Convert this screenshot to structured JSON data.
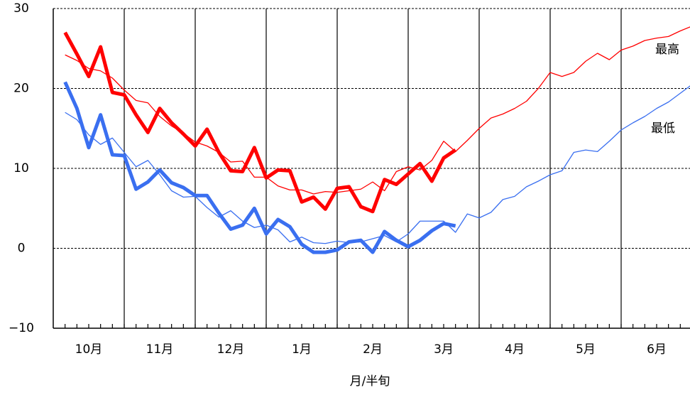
{
  "chart_data": {
    "type": "line",
    "x_label": "月/半旬",
    "x": [
      1,
      2,
      3,
      4,
      5,
      6,
      7,
      8,
      9,
      10,
      11,
      12,
      13,
      14,
      15,
      16,
      17,
      18,
      19,
      20,
      21,
      22,
      23,
      24,
      25,
      26,
      27,
      28,
      29,
      30,
      31,
      32,
      33,
      34,
      35,
      36,
      37,
      38,
      39,
      40,
      41,
      42,
      43,
      44,
      45,
      46,
      47,
      48,
      49,
      50,
      51,
      52,
      53,
      54
    ],
    "xlim": [
      0,
      54
    ],
    "xticks": [
      {
        "value": 3,
        "label": "10月"
      },
      {
        "value": 9,
        "label": "11月"
      },
      {
        "value": 15,
        "label": "12月"
      },
      {
        "value": 21,
        "label": "1月"
      },
      {
        "value": 27,
        "label": "2月"
      },
      {
        "value": 33,
        "label": "3月"
      },
      {
        "value": 39,
        "label": "4月"
      },
      {
        "value": 45,
        "label": "5月"
      },
      {
        "value": 51,
        "label": "6月"
      }
    ],
    "ylim": [
      -10,
      30
    ],
    "yticks": [
      {
        "value": -10,
        "label": "−10"
      },
      0,
      10,
      20,
      30
    ],
    "grid": true,
    "annotations": [
      {
        "text": "最高"
      },
      {
        "text": "最低"
      }
    ],
    "series": [
      {
        "color": "#ff0000",
        "width": 1.3,
        "values": [
          24.2,
          23.5,
          22.5,
          22.2,
          21.3,
          19.8,
          18.5,
          18.2,
          16.5,
          15.3,
          14.4,
          13.3,
          12.8,
          12.0,
          10.8,
          10.9,
          8.9,
          8.9,
          7.8,
          7.3,
          7.3,
          6.8,
          7.1,
          7.0,
          7.2,
          7.4,
          8.3,
          7.2,
          9.6,
          10.2,
          9.8,
          11.0,
          13.4,
          12.1,
          13.5,
          15.0,
          16.3,
          16.8,
          17.5,
          18.4,
          20.0,
          22.0,
          21.5,
          22.0,
          23.4,
          24.4,
          23.6,
          24.8,
          25.3,
          26.0,
          26.3,
          26.5,
          27.2,
          27.8
        ]
      },
      {
        "color": "#3a6ff0",
        "width": 1.3,
        "values": [
          17.0,
          16.1,
          14.2,
          13.0,
          13.8,
          12.0,
          10.2,
          11.0,
          9.2,
          7.2,
          6.4,
          6.5,
          5.1,
          3.9,
          4.7,
          3.4,
          2.6,
          2.9,
          2.3,
          0.8,
          1.4,
          0.7,
          0.6,
          0.9,
          0.7,
          0.8,
          1.2,
          1.6,
          0.8,
          1.8,
          3.4,
          3.4,
          3.4,
          2.0,
          4.3,
          3.8,
          4.5,
          6.1,
          6.5,
          7.7,
          8.4,
          9.2,
          9.7,
          12.0,
          12.3,
          12.1,
          13.4,
          14.8,
          15.7,
          16.5,
          17.5,
          18.3,
          19.4,
          20.5
        ]
      },
      {
        "color": "#ff0000",
        "width": 5,
        "values": [
          27.0,
          24.3,
          21.5,
          25.2,
          19.5,
          19.2,
          16.7,
          14.5,
          17.5,
          15.7,
          14.3,
          12.8,
          14.9,
          12.0,
          9.7,
          9.6,
          12.6,
          8.8,
          9.8,
          9.7,
          5.8,
          6.4,
          4.9,
          7.5,
          7.7,
          5.2,
          4.6,
          8.6,
          8.0,
          9.3,
          10.6,
          8.4,
          11.3,
          12.3,
          null,
          null,
          null,
          null,
          null,
          null,
          null,
          null,
          null,
          null,
          null,
          null,
          null,
          null,
          null,
          null,
          null,
          null,
          null,
          null
        ]
      },
      {
        "color": "#3a6ff0",
        "width": 5,
        "values": [
          20.8,
          17.5,
          12.6,
          16.7,
          11.7,
          11.6,
          7.4,
          8.3,
          9.8,
          8.2,
          7.6,
          6.6,
          6.6,
          4.4,
          2.4,
          2.9,
          5.0,
          1.8,
          3.6,
          2.7,
          0.5,
          -0.5,
          -0.5,
          -0.2,
          0.8,
          1.0,
          -0.5,
          2.1,
          1.0,
          0.2,
          1.0,
          2.2,
          3.1,
          2.8,
          null,
          null,
          null,
          null,
          null,
          null,
          null,
          null,
          null,
          null,
          null,
          null,
          null,
          null,
          null,
          null,
          null,
          null,
          null,
          null
        ]
      }
    ]
  }
}
